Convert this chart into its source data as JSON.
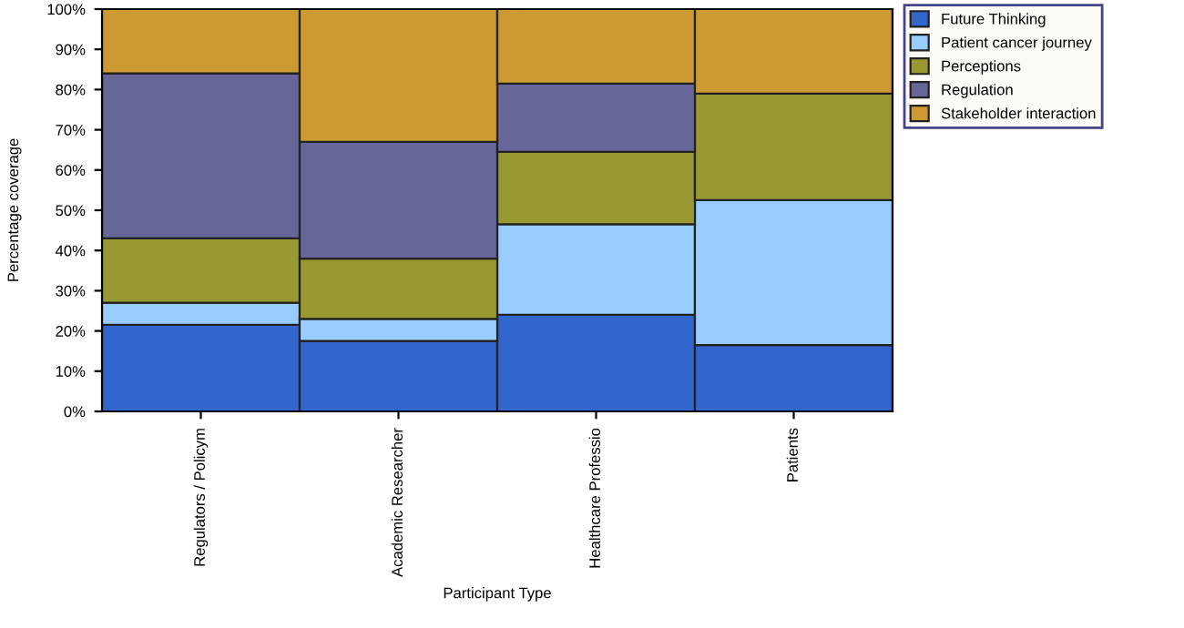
{
  "chart_data": {
    "type": "bar",
    "stacked": true,
    "xlabel": "Participant Type",
    "ylabel": "Percentage coverage",
    "categories": [
      "Regulators / Policym",
      "Academic Researcher",
      "Healthcare Professio",
      "Patients"
    ],
    "series": [
      {
        "name": "Future Thinking",
        "color": "#3366cc",
        "values": [
          21.5,
          17.5,
          24,
          16.5
        ]
      },
      {
        "name": "Patient cancer journey",
        "color": "#99ccff",
        "values": [
          5.5,
          5.5,
          22.5,
          36
        ]
      },
      {
        "name": "Perceptions",
        "color": "#999933",
        "values": [
          16,
          15,
          18,
          26.5
        ]
      },
      {
        "name": "Regulation",
        "color": "#666699",
        "values": [
          41,
          29,
          17,
          null
        ]
      },
      {
        "name": "Stakeholder interaction",
        "color": "#cc9933",
        "values": [
          16,
          33,
          18.5,
          21
        ]
      }
    ],
    "ylim": [
      0,
      100
    ],
    "yticks": [
      {
        "value": 0,
        "label": "0%"
      },
      {
        "value": 10,
        "label": "10%"
      },
      {
        "value": 20,
        "label": "20%"
      },
      {
        "value": 30,
        "label": "30%"
      },
      {
        "value": 40,
        "label": "40%"
      },
      {
        "value": 50,
        "label": "50%"
      },
      {
        "value": 60,
        "label": "60%"
      },
      {
        "value": 70,
        "label": "70%"
      },
      {
        "value": 80,
        "label": "80%"
      },
      {
        "value": 90,
        "label": "90%"
      },
      {
        "value": 100,
        "label": "100%"
      }
    ],
    "grid": false,
    "legend": "right"
  }
}
